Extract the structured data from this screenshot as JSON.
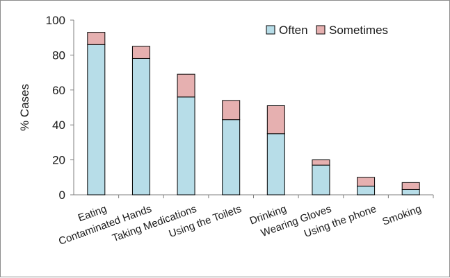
{
  "chart_data": {
    "type": "bar",
    "stacked": true,
    "categories": [
      "Eating",
      "Contaminated Hands",
      "Taking Medications",
      "Using the Toilets",
      "Drinking",
      "Wearing Gloves",
      "Using the phone",
      "Smoking"
    ],
    "series": [
      {
        "name": "Often",
        "color": "#b7dde8",
        "values": [
          86,
          78,
          56,
          43,
          35,
          17,
          5,
          3
        ]
      },
      {
        "name": "Sometimes",
        "color": "#e6b0b0",
        "values": [
          7,
          7,
          13,
          11,
          16,
          3,
          5,
          4
        ]
      }
    ],
    "ylabel": "% Cases",
    "xlabel": "",
    "ylim": [
      0,
      100
    ],
    "yticks": [
      "0",
      "20",
      "40",
      "60",
      "80",
      "100"
    ],
    "grid": false,
    "legend_position": "top-right"
  }
}
